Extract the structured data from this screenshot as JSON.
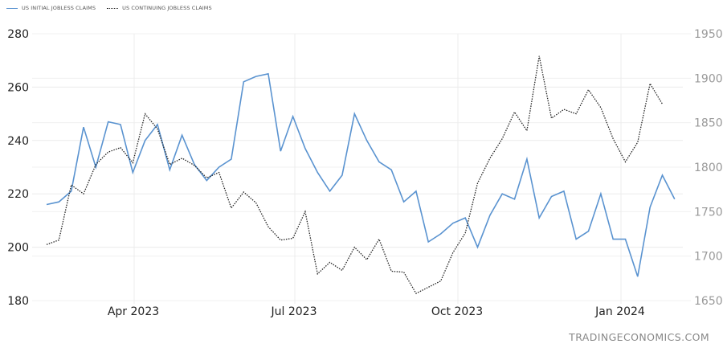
{
  "legend": {
    "items": [
      {
        "label": "US INITIAL JOBLESS CLAIMS",
        "style": "solid",
        "color": "#5a93d0"
      },
      {
        "label": "US CONTINUING JOBLESS CLAIMS",
        "style": "dotted",
        "color": "#222222"
      }
    ]
  },
  "watermark": "TRADINGECONOMICS.COM",
  "chart_data": {
    "type": "line",
    "title": "",
    "xlabel": "",
    "ylabel": "",
    "y2label": "",
    "grid": true,
    "legend_position": "top-left",
    "x_tick_labels": [
      "Apr 2023",
      "Jul 2023",
      "Oct 2023",
      "Jan 2024"
    ],
    "left_axis": {
      "ticks": [
        180,
        200,
        220,
        240,
        260,
        280
      ],
      "ylim": [
        180,
        280
      ]
    },
    "right_axis": {
      "ticks": [
        1650,
        1700,
        1750,
        1800,
        1850,
        1900,
        1950
      ],
      "ylim": [
        1650,
        1950
      ]
    },
    "series": [
      {
        "name": "US INITIAL JOBLESS CLAIMS",
        "axis": "left",
        "color": "#5a93d0",
        "style": "solid",
        "values": [
          216,
          217,
          221,
          245,
          230,
          247,
          246,
          228,
          240,
          246,
          229,
          242,
          231,
          225,
          230,
          233,
          262,
          264,
          265,
          236,
          249,
          237,
          228,
          221,
          227,
          250,
          240,
          232,
          229,
          217,
          221,
          202,
          205,
          209,
          211,
          200,
          212,
          220,
          218,
          233,
          211,
          219,
          221,
          203,
          206,
          220,
          203,
          203,
          189,
          215,
          227,
          218
        ]
      },
      {
        "name": "US CONTINUING JOBLESS CLAIMS",
        "axis": "right",
        "color": "#222222",
        "style": "dotted",
        "values": [
          1713,
          1718,
          1780,
          1770,
          1803,
          1817,
          1822,
          1805,
          1860,
          1843,
          1803,
          1810,
          1802,
          1788,
          1794,
          1754,
          1772,
          1760,
          1733,
          1718,
          1720,
          1750,
          1680,
          1693,
          1684,
          1710,
          1696,
          1719,
          1683,
          1682,
          1658,
          1665,
          1672,
          1704,
          1726,
          1782,
          1810,
          1832,
          1862,
          1841,
          1925,
          1855,
          1865,
          1860,
          1887,
          1867,
          1832,
          1806,
          1828,
          1894,
          1871
        ]
      }
    ]
  }
}
